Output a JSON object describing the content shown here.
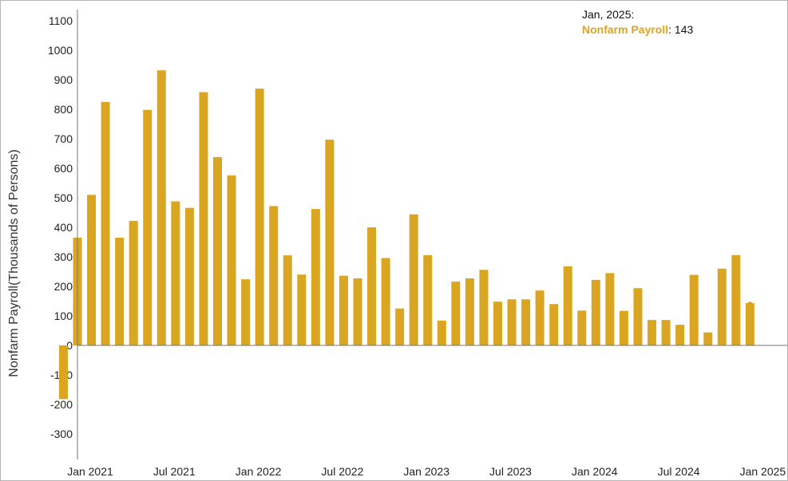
{
  "chart_data": {
    "type": "bar",
    "ylabel": "Nonfarm Payroll(Thousands of Persons)",
    "ylim": [
      -300,
      1100
    ],
    "yticks": [
      -300,
      -200,
      -100,
      0,
      100,
      200,
      300,
      400,
      500,
      600,
      700,
      800,
      900,
      1000,
      1100
    ],
    "x_tick_labels": [
      "Jan 2021",
      "Jul 2021",
      "Jan 2022",
      "Jul 2022",
      "Jan 2023",
      "Jul 2023",
      "Jan 2024",
      "Jul 2024",
      "Jan 2025"
    ],
    "x_tick_months": [
      "2021-01",
      "2021-07",
      "2022-01",
      "2022-07",
      "2023-01",
      "2023-07",
      "2024-01",
      "2024-07",
      "2025-01"
    ],
    "series": [
      {
        "name": "Nonfarm Payroll",
        "color": "#DAA520",
        "months": [
          "2020-12",
          "2021-01",
          "2021-02",
          "2021-03",
          "2021-04",
          "2021-05",
          "2021-06",
          "2021-07",
          "2021-08",
          "2021-09",
          "2021-10",
          "2021-11",
          "2021-12",
          "2022-01",
          "2022-02",
          "2022-03",
          "2022-04",
          "2022-05",
          "2022-06",
          "2022-07",
          "2022-08",
          "2022-09",
          "2022-10",
          "2022-11",
          "2022-12",
          "2023-01",
          "2023-02",
          "2023-03",
          "2023-04",
          "2023-05",
          "2023-06",
          "2023-07",
          "2023-08",
          "2023-09",
          "2023-10",
          "2023-11",
          "2023-12",
          "2024-01",
          "2024-02",
          "2024-03",
          "2024-04",
          "2024-05",
          "2024-06",
          "2024-07",
          "2024-08",
          "2024-09",
          "2024-10",
          "2024-11",
          "2024-12",
          "2025-01"
        ],
        "values": [
          -182,
          365,
          510,
          825,
          365,
          422,
          798,
          932,
          488,
          466,
          858,
          638,
          576,
          224,
          870,
          472,
          305,
          240,
          462,
          697,
          236,
          227,
          400,
          296,
          125,
          444,
          306,
          84,
          216,
          227,
          256,
          148,
          156,
          156,
          186,
          140,
          268,
          118,
          222,
          245,
          117,
          194,
          86,
          86,
          70,
          239,
          44,
          260,
          306,
          143
        ]
      }
    ]
  },
  "tooltip": {
    "date": "Jan, 2025:",
    "series": "Nonfarm Payroll",
    "value": "143"
  }
}
